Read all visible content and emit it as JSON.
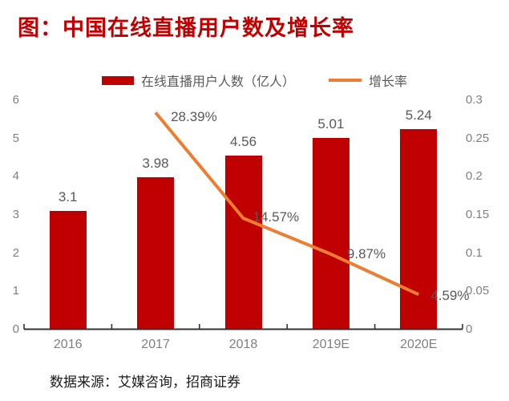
{
  "title": "图：中国在线直播用户数及增长率",
  "source": "数据来源：艾媒咨询，招商证券",
  "colors": {
    "bar": "#C00000",
    "line": "#ED7D31",
    "title": "#C00000",
    "data_label": "#595959",
    "axis_label": "#808080",
    "axis_line": "#333333"
  },
  "legend": {
    "bar_label": "在线直播用户人数（亿人）",
    "line_label": "增长率"
  },
  "chart_data": {
    "type": "bar",
    "subtype": "bar+line combo, dual axis",
    "title": "图：中国在线直播用户数及增长率",
    "categories": [
      "2016",
      "2017",
      "2018",
      "2019E",
      "2020E"
    ],
    "series": [
      {
        "name": "在线直播用户人数（亿人）",
        "type": "bar",
        "axis": "left",
        "values": [
          3.1,
          3.98,
          4.56,
          5.01,
          5.24
        ],
        "labels": [
          "3.1",
          "3.98",
          "4.56",
          "5.01",
          "5.24"
        ]
      },
      {
        "name": "增长率",
        "type": "line",
        "axis": "right",
        "values": [
          null,
          0.2839,
          0.1457,
          0.0987,
          0.0459
        ],
        "labels": [
          null,
          "28.39%",
          "14.57%",
          "9.87%",
          "4.59%"
        ]
      }
    ],
    "left_axis": {
      "min": 0,
      "max": 6,
      "tick_values": [
        0,
        1,
        2,
        3,
        4,
        5,
        6
      ],
      "tick_labels": [
        "0",
        "1",
        "2",
        "3",
        "4",
        "5",
        "6"
      ]
    },
    "right_axis": {
      "min": 0,
      "max": 0.3,
      "tick_values": [
        0,
        0.05,
        0.1,
        0.15,
        0.2,
        0.25,
        0.3
      ],
      "tick_labels": [
        "0",
        "0.05",
        "0.1",
        "0.15",
        "0.2",
        "0.25",
        "0.3"
      ]
    },
    "grid": false,
    "legend_position": "top"
  }
}
